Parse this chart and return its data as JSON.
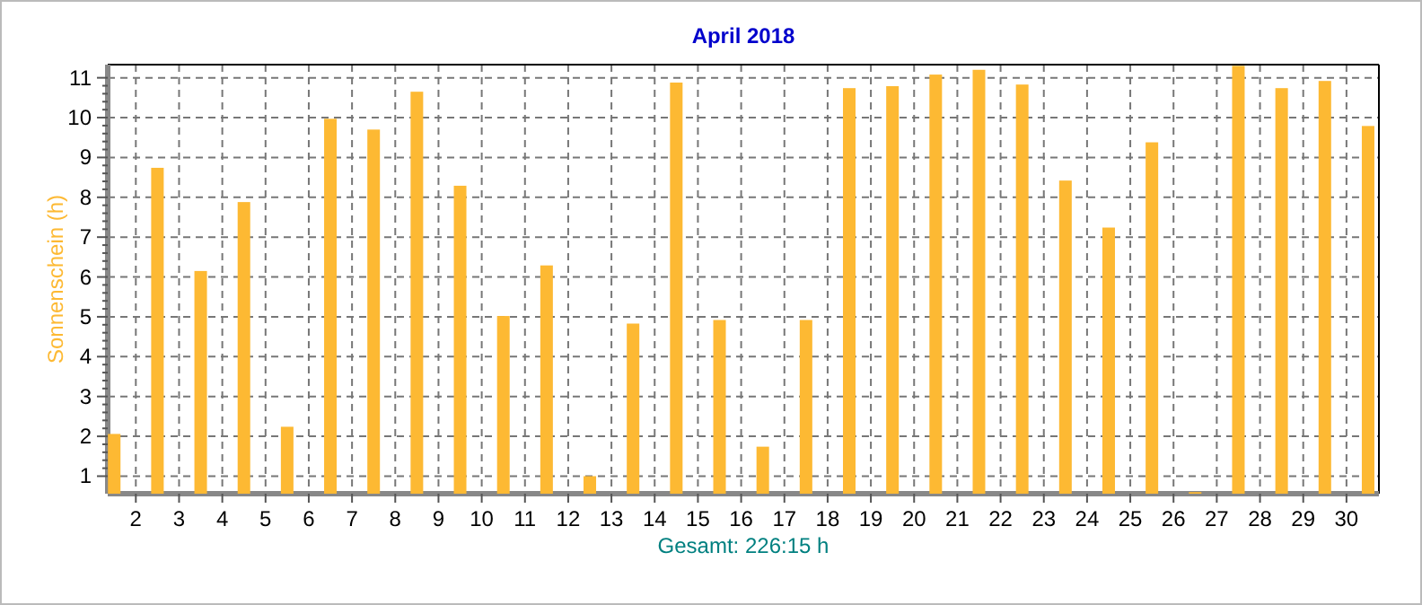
{
  "chart_data": {
    "type": "bar",
    "title": "April 2018",
    "ylabel": "Sonnenschein  (h)",
    "annotations": [
      "Gesamt: 226:15 h"
    ],
    "x": [
      1.5,
      2.5,
      3.5,
      4.5,
      5.5,
      6.5,
      7.5,
      8.5,
      9.5,
      10.5,
      11.5,
      12.5,
      13.5,
      14.5,
      15.5,
      16.5,
      17.5,
      18.5,
      19.5,
      20.5,
      21.5,
      22.5,
      23.5,
      24.5,
      25.5,
      26.5,
      27.5,
      28.5,
      29.5,
      30.5
    ],
    "values": [
      2.06,
      8.74,
      6.15,
      7.88,
      2.24,
      9.97,
      9.7,
      10.65,
      8.29,
      5.02,
      6.29,
      1.0,
      4.83,
      10.88,
      4.92,
      1.74,
      4.92,
      10.74,
      10.79,
      11.08,
      11.2,
      10.83,
      8.42,
      7.24,
      9.38,
      0.6,
      11.3,
      10.74,
      10.92,
      9.79
    ],
    "color": "#fdb933",
    "xlim": [
      1.35,
      30.75
    ],
    "xticks": [
      2,
      3,
      4,
      5,
      6,
      7,
      8,
      9,
      10,
      11,
      12,
      13,
      14,
      15,
      16,
      17,
      18,
      19,
      20,
      21,
      22,
      23,
      24,
      25,
      26,
      27,
      28,
      29,
      30
    ],
    "ylim": [
      0.56,
      11.33
    ],
    "yticks": [
      1,
      2,
      3,
      4,
      5,
      6,
      7,
      8,
      9,
      10,
      11
    ],
    "grid": true
  }
}
